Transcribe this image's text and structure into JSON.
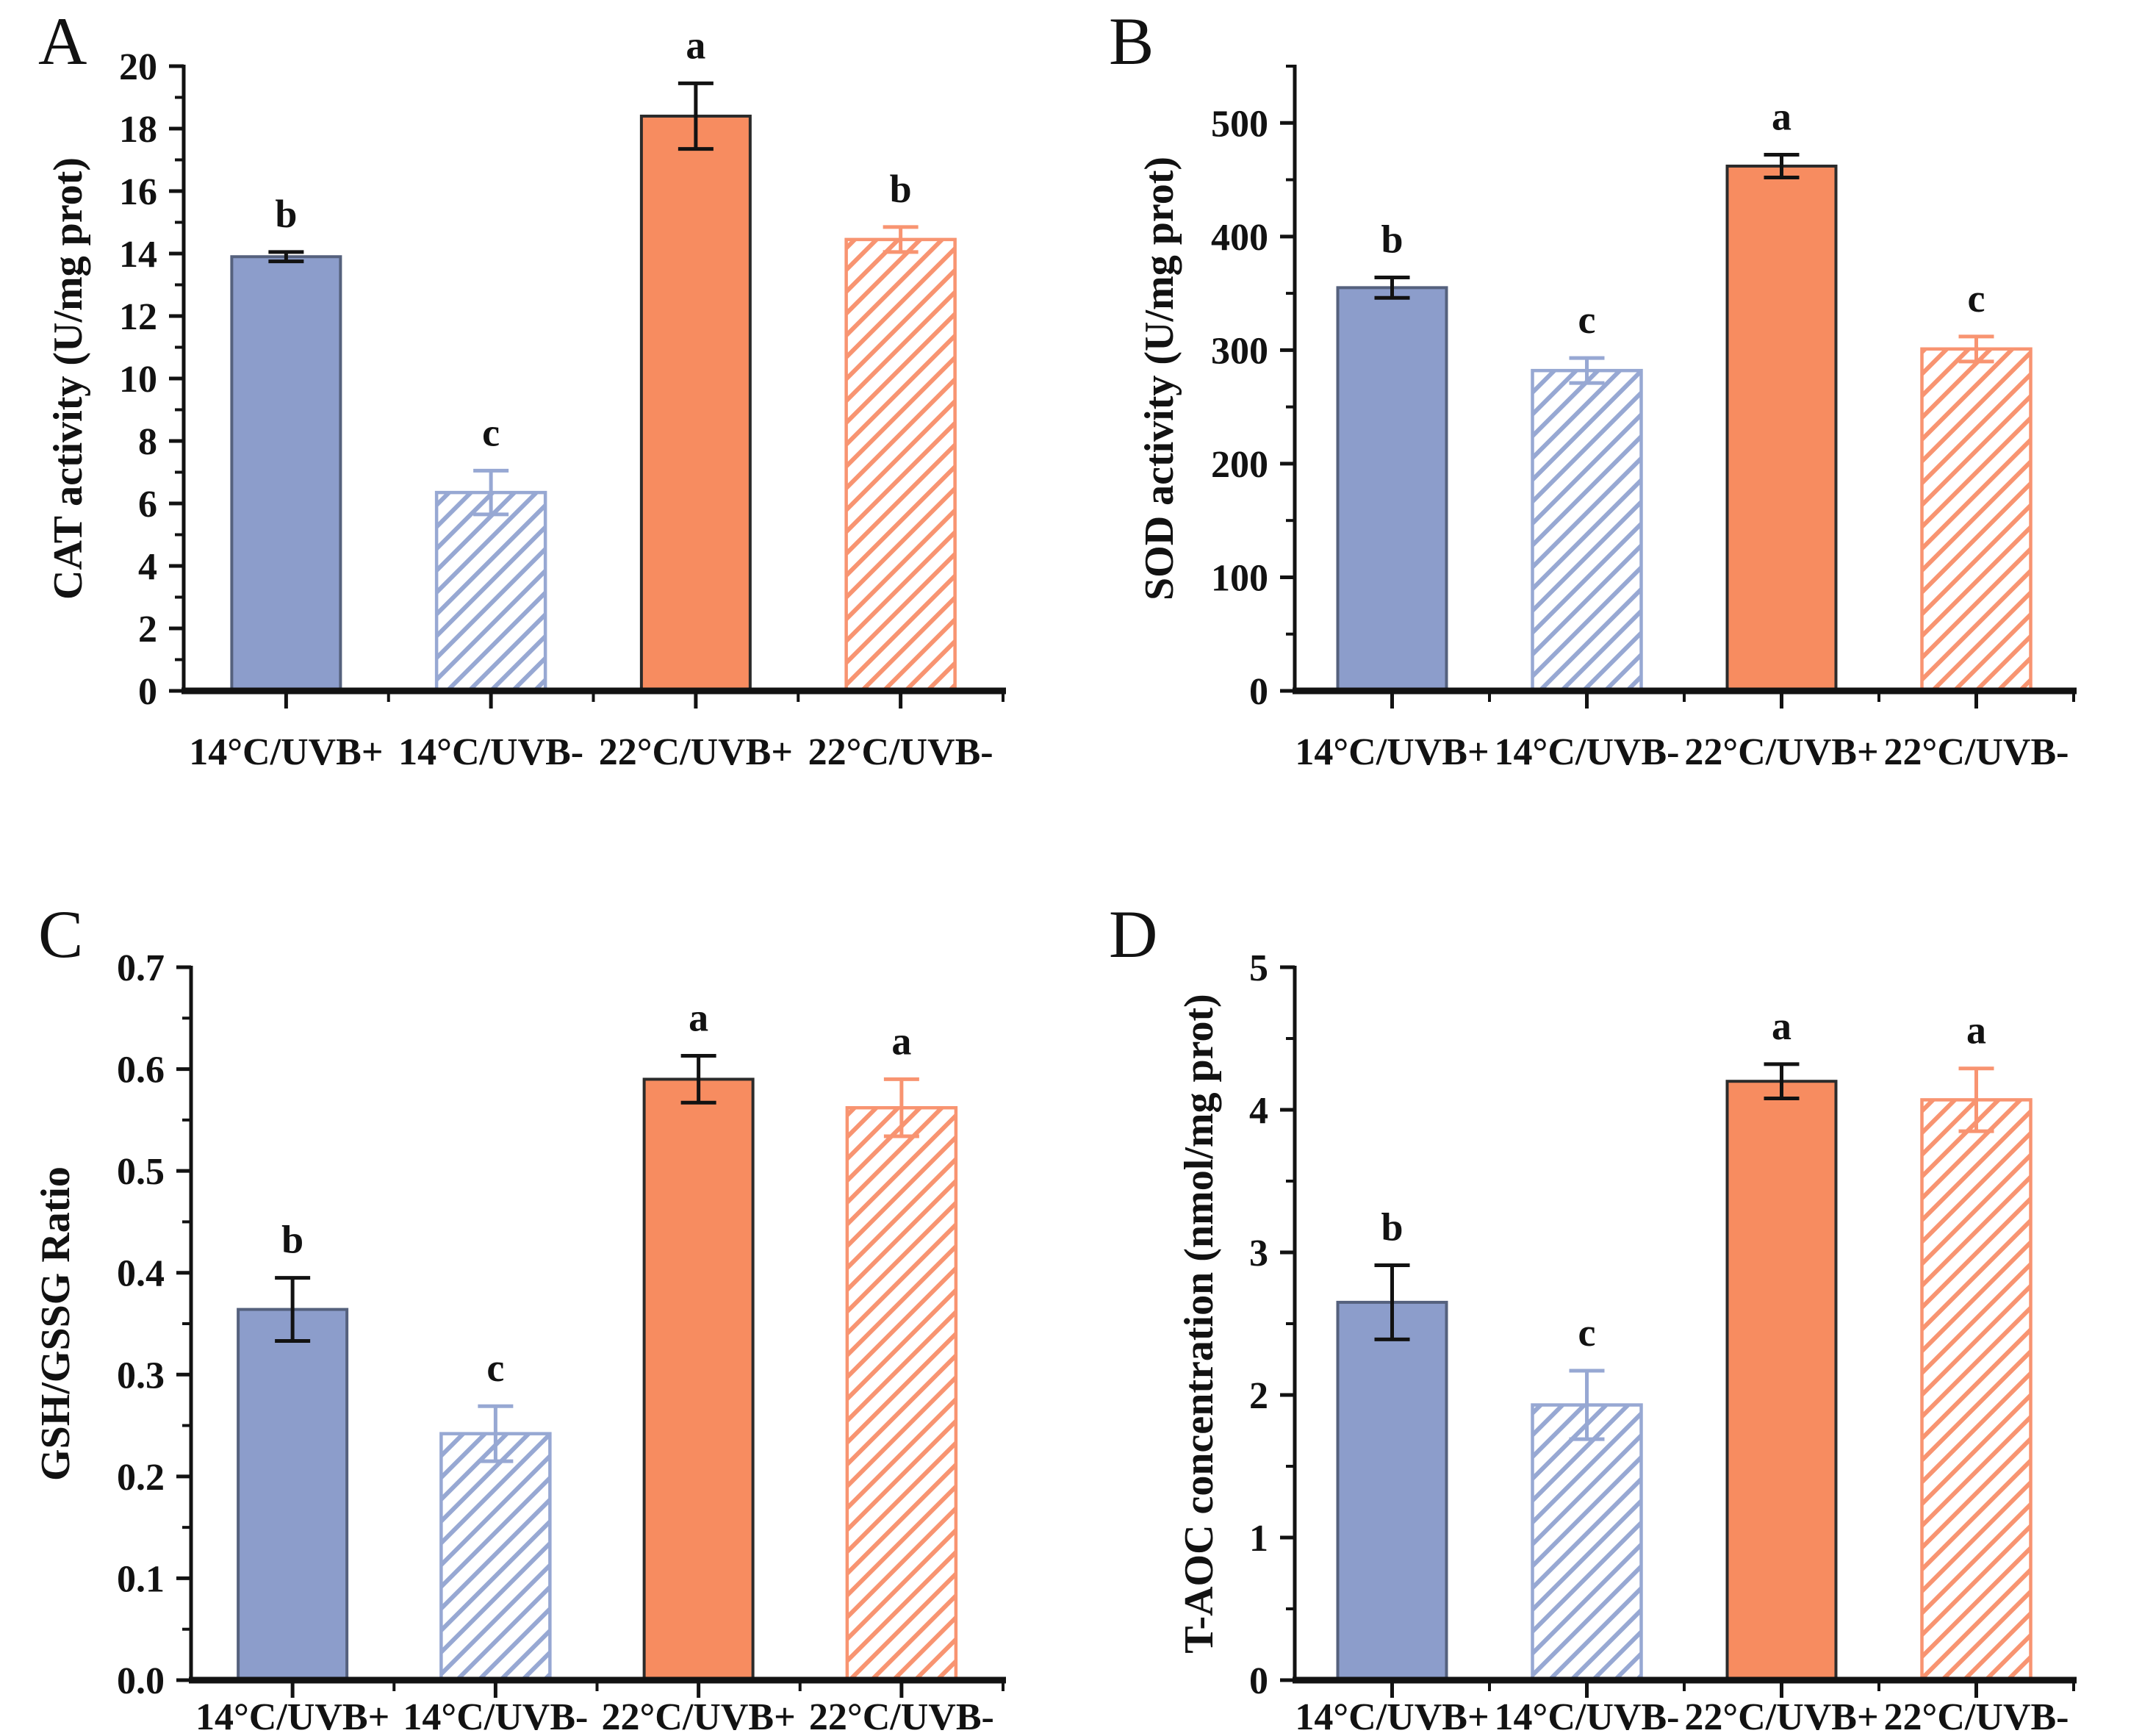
{
  "figure": {
    "background": "#ffffff",
    "description_panels": [
      "A",
      "B",
      "C",
      "D"
    ]
  },
  "colors": {
    "blue_solid_fill": "#8C9DCB",
    "blue_solid_outline": "#55617D",
    "blue_hatch_line": "#97A8D3",
    "orange_solid_fill": "#F78C60",
    "orange_solid_outline": "#2B2B2B",
    "orange_hatch_line": "#F89471",
    "axis": "#121212",
    "error_dark": "#121212",
    "text": "#121212",
    "background": "#ffffff"
  },
  "chart_data": [
    {
      "panel": "A",
      "type": "bar",
      "ylabel": "CAT activity (U/mg prot)",
      "xlabel": "",
      "ylim": [
        0,
        20
      ],
      "axis_top": 20,
      "ytick_step": 2,
      "yminor_step": 1,
      "ytick_decimals": 0,
      "grid": false,
      "legend": "none",
      "categories": [
        "14°C/UVB+",
        "14°C/UVB-",
        "22°C/UVB+",
        "22°C/UVB-"
      ],
      "values": [
        13.9,
        6.35,
        18.4,
        14.45
      ],
      "errors": [
        0.15,
        0.7,
        1.05,
        0.4
      ],
      "sig_letters": [
        "b",
        "c",
        "a",
        "b"
      ],
      "bar_styles": [
        "blue-solid",
        "blue-hatch",
        "orange-solid",
        "orange-hatch"
      ]
    },
    {
      "panel": "B",
      "type": "bar",
      "ylabel": "SOD activity (U/mg prot)",
      "xlabel": "",
      "ylim": [
        0,
        500
      ],
      "axis_top": 550,
      "ytick_step": 100,
      "yminor_step": 50,
      "ytick_decimals": 0,
      "grid": false,
      "legend": "none",
      "categories": [
        "14°C/UVB+",
        "14°C/UVB-",
        "22°C/UVB+",
        "22°C/UVB-"
      ],
      "values": [
        355,
        282,
        462,
        301
      ],
      "errors": [
        9,
        11,
        10,
        11
      ],
      "sig_letters": [
        "b",
        "c",
        "a",
        "c"
      ],
      "bar_styles": [
        "blue-solid",
        "blue-hatch",
        "orange-solid",
        "orange-hatch"
      ]
    },
    {
      "panel": "C",
      "type": "bar",
      "ylabel": "GSH/GSSG Ratio",
      "xlabel": "",
      "ylim": [
        0,
        0.7
      ],
      "axis_top": 0.7,
      "ytick_step": 0.1,
      "yminor_step": 0.05,
      "ytick_decimals": 1,
      "grid": false,
      "legend": "none",
      "categories": [
        "14°C/UVB+",
        "14°C/UVB-",
        "22°C/UVB+",
        "22°C/UVB-"
      ],
      "values": [
        0.364,
        0.242,
        0.59,
        0.562
      ],
      "errors": [
        0.031,
        0.027,
        0.023,
        0.028
      ],
      "sig_letters": [
        "b",
        "c",
        "a",
        "a"
      ],
      "bar_styles": [
        "blue-solid",
        "blue-hatch",
        "orange-solid",
        "orange-hatch"
      ]
    },
    {
      "panel": "D",
      "type": "bar",
      "ylabel": "T-AOC concentration (nmol/mg prot)",
      "xlabel": "",
      "ylim": [
        0,
        5
      ],
      "axis_top": 5,
      "ytick_step": 1,
      "yminor_step": 0.5,
      "ytick_decimals": 0,
      "grid": false,
      "legend": "none",
      "categories": [
        "14°C/UVB+",
        "14°C/UVB-",
        "22°C/UVB+",
        "22°C/UVB-"
      ],
      "values": [
        2.65,
        1.93,
        4.2,
        4.07
      ],
      "errors": [
        0.26,
        0.24,
        0.12,
        0.22
      ],
      "sig_letters": [
        "b",
        "c",
        "a",
        "a"
      ],
      "bar_styles": [
        "blue-solid",
        "blue-hatch",
        "orange-solid",
        "orange-hatch"
      ]
    }
  ]
}
